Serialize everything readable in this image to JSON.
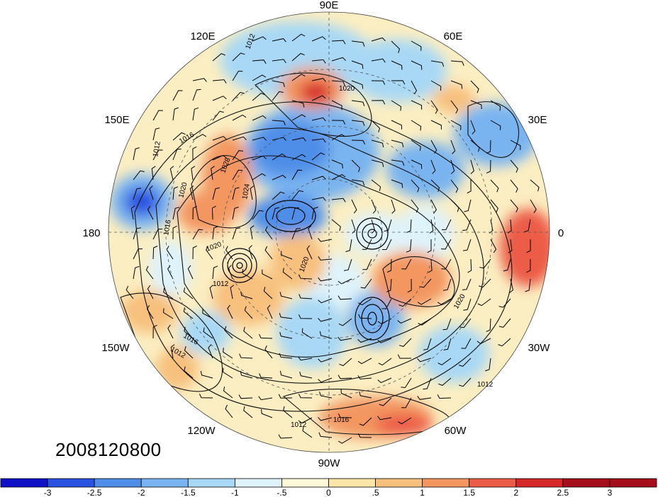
{
  "map": {
    "projection": "north-polar-stereographic",
    "date_stamp": "2008120800",
    "longitude_labels": [
      "90E",
      "120E",
      "60E",
      "150E",
      "30E",
      "180",
      "0",
      "150W",
      "30W",
      "120W",
      "60W",
      "90W"
    ],
    "contour_labels": [
      "1012",
      "1020",
      "1016",
      "1012",
      "1020",
      "1028",
      "1024",
      "1020",
      "1016",
      "1020",
      "1012",
      "1016",
      "1012",
      "1020",
      "1012",
      "1016",
      "1012"
    ]
  },
  "colorbar": {
    "tick_labels": [
      "-3",
      "-2.5",
      "-2",
      "-1.5",
      "-1",
      "-.5",
      "0",
      ".5",
      "1",
      "1.5",
      "2",
      "2.5",
      "3"
    ],
    "colors": [
      "#1010c8",
      "#2a52e0",
      "#4f8ee8",
      "#79b4f0",
      "#a8d8f5",
      "#dff3fb",
      "#fdf8d8",
      "#fbe6a8",
      "#f7c07d",
      "#f39660",
      "#ec5c46",
      "#d6282b",
      "#a50f1c",
      "#a50f1c"
    ]
  }
}
